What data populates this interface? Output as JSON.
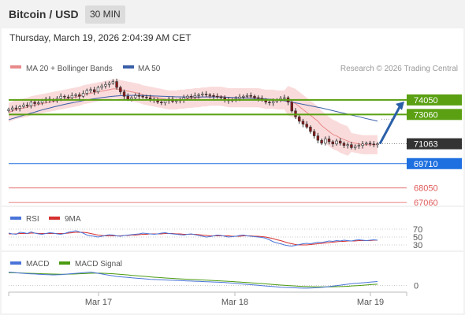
{
  "header": {
    "title": "Bitcoin / USD",
    "timeframe": "30 MIN",
    "timestamp": "Thursday, March 19, 2026 2:04:39 AM CET"
  },
  "legend": {
    "ma20_label": "MA 20 + Bollinger Bands",
    "ma50_label": "MA 50",
    "credit": "Research © 2026 Trading Central"
  },
  "colors": {
    "ma20": "#e88a8a",
    "ma50": "#3a5fa8",
    "green_level": "#5aa012",
    "blue_level": "#1e6fe0",
    "red_level": "#e05a5a",
    "current": "#333333",
    "bull_candle": "#ffffff",
    "bear_candle": "#8b1a1a",
    "bands": "#f9d2d2",
    "rsi": "#4a74d8",
    "rsi_ma": "#d63030",
    "macd": "#4a74d8",
    "macd_signal": "#4a9a10",
    "arrow": "#2a5fa8"
  },
  "chart_data": [
    {
      "type": "candlestick",
      "name": "price",
      "y_range": [
        66800,
        75600
      ],
      "x_ticks": [
        "Mar 17",
        "Mar 18",
        "Mar 19"
      ],
      "levels": [
        {
          "value": 74050,
          "label": "74050",
          "kind": "resistance"
        },
        {
          "value": 73060,
          "label": "73060",
          "kind": "resistance"
        },
        {
          "value": 71063,
          "label": "71063",
          "kind": "current"
        },
        {
          "value": 69710,
          "label": "69710",
          "kind": "support"
        },
        {
          "value": 68050,
          "label": "68050",
          "kind": "support-weak"
        },
        {
          "value": 67060,
          "label": "67060",
          "kind": "support-weak"
        }
      ],
      "close": [
        73400,
        73500,
        73480,
        73600,
        73700,
        73650,
        73900,
        73800,
        73850,
        74000,
        74100,
        74050,
        74000,
        74150,
        74300,
        74250,
        74200,
        74350,
        74400,
        74300,
        74500,
        74700,
        74750,
        74600,
        74900,
        75000,
        75100,
        75200,
        75300,
        74900,
        74600,
        74300,
        74100,
        74200,
        74350,
        74300,
        74250,
        74200,
        74100,
        74050,
        73900,
        73850,
        74000,
        74100,
        73950,
        74000,
        74050,
        74200,
        74300,
        74250,
        74350,
        74400,
        74450,
        74400,
        74350,
        74300,
        74250,
        74200,
        74050,
        74000,
        74050,
        74150,
        74250,
        74300,
        74350,
        74300,
        74200,
        74150,
        74050,
        73900,
        73850,
        73950,
        74050,
        74150,
        74200,
        73900,
        73300,
        72900,
        72600,
        72400,
        72200,
        71900,
        71600,
        71300,
        71100,
        71400,
        71200,
        71050,
        71250,
        71100,
        70950,
        71000,
        70800,
        70900,
        70950,
        71050,
        71100,
        71050,
        71000,
        71063
      ],
      "ma20": [
        73200,
        73300,
        73400,
        73450,
        73500,
        73550,
        73650,
        73700,
        73750,
        73800,
        73850,
        73900,
        73950,
        74000,
        74050,
        74100,
        74150,
        74200,
        74250,
        74300,
        74400,
        74450,
        74500,
        74550,
        74600,
        74650,
        74700,
        74750,
        74800,
        74800,
        74750,
        74700,
        74650,
        74600,
        74550,
        74500,
        74400,
        74350,
        74300,
        74250,
        74200,
        74150,
        74100,
        74050,
        74050,
        74050,
        74100,
        74100,
        74150,
        74150,
        74200,
        74200,
        74250,
        74250,
        74300,
        74300,
        74300,
        74300,
        74250,
        74200,
        74200,
        74200,
        74200,
        74200,
        74200,
        74200,
        74200,
        74200,
        74150,
        74100,
        74100,
        74100,
        74050,
        74050,
        74050,
        74000,
        73900,
        73800,
        73600,
        73400,
        73200,
        73000,
        72800,
        72600,
        72300,
        72100,
        71900,
        71700,
        71600,
        71450,
        71350,
        71250,
        71150,
        71100,
        71050,
        71000,
        71000,
        71000,
        71000,
        71000
      ],
      "ma50": [
        72700,
        72780,
        72850,
        72930,
        73000,
        73080,
        73150,
        73220,
        73300,
        73370,
        73440,
        73500,
        73570,
        73630,
        73690,
        73750,
        73800,
        73850,
        73900,
        73950,
        74000,
        74050,
        74090,
        74130,
        74170,
        74210,
        74240,
        74270,
        74300,
        74320,
        74340,
        74350,
        74360,
        74360,
        74360,
        74360,
        74350,
        74340,
        74330,
        74320,
        74310,
        74300,
        74290,
        74280,
        74270,
        74260,
        74260,
        74250,
        74250,
        74250,
        74250,
        74250,
        74250,
        74250,
        74250,
        74250,
        74250,
        74250,
        74240,
        74230,
        74220,
        74210,
        74200,
        74190,
        74180,
        74170,
        74160,
        74150,
        74140,
        74120,
        74100,
        74080,
        74050,
        74020,
        73990,
        73950,
        73900,
        73850,
        73800,
        73750,
        73700,
        73650,
        73600,
        73550,
        73500,
        73440,
        73380,
        73320,
        73260,
        73200,
        73140,
        73080,
        73020,
        72960,
        72900,
        72840,
        72780,
        72720,
        72660,
        72600
      ]
    },
    {
      "type": "line",
      "name": "RSI",
      "series": [
        {
          "name": "RSI",
          "values": [
            60,
            58,
            57,
            62,
            61,
            59,
            63,
            60,
            58,
            57,
            59,
            61,
            60,
            58,
            57,
            59,
            62,
            64,
            66,
            63,
            60,
            55,
            53,
            52,
            50,
            52,
            54,
            56,
            55,
            53,
            52,
            54,
            55,
            56,
            57,
            58,
            60,
            59,
            58,
            57,
            58,
            60,
            61,
            59,
            58,
            57,
            56,
            55,
            57,
            58,
            56,
            54,
            52,
            50,
            51,
            53,
            55,
            54,
            52,
            50,
            51,
            52,
            54,
            55,
            53,
            52,
            51,
            50,
            49,
            47,
            43,
            38,
            35,
            33,
            30,
            28,
            27,
            29,
            31,
            33,
            34,
            33,
            35,
            37,
            36,
            38,
            40,
            39,
            41,
            40,
            42,
            41,
            40,
            42,
            43,
            42,
            41,
            42,
            43,
            42
          ]
        },
        {
          "name": "9MA",
          "values": [
            58,
            58,
            58,
            59,
            59,
            59,
            60,
            60,
            59,
            59,
            59,
            59,
            59,
            59,
            59,
            59,
            60,
            61,
            62,
            62,
            62,
            61,
            59,
            57,
            55,
            54,
            53,
            53,
            53,
            53,
            53,
            54,
            54,
            55,
            55,
            56,
            57,
            57,
            58,
            58,
            58,
            58,
            59,
            59,
            59,
            58,
            58,
            57,
            57,
            57,
            57,
            56,
            55,
            54,
            53,
            53,
            53,
            53,
            53,
            53,
            52,
            52,
            52,
            53,
            53,
            53,
            52,
            52,
            51,
            50,
            48,
            46,
            43,
            41,
            38,
            35,
            33,
            31,
            30,
            30,
            30,
            31,
            32,
            33,
            34,
            35,
            36,
            37,
            38,
            39,
            39,
            40,
            40,
            40,
            41,
            41,
            41,
            41,
            42,
            42
          ]
        }
      ],
      "ticks": [
        "70",
        "50",
        "30"
      ]
    },
    {
      "type": "line",
      "name": "MACD",
      "series": [
        {
          "name": "MACD",
          "values": [
            250,
            240,
            230,
            220,
            210,
            200,
            195,
            190,
            180,
            175,
            170,
            165,
            160,
            165,
            170,
            180,
            190,
            200,
            210,
            220,
            230,
            240,
            250,
            230,
            210,
            190,
            170,
            150,
            130,
            110,
            100,
            90,
            80,
            70,
            60,
            50,
            40,
            30,
            20,
            15,
            10,
            5,
            0,
            -5,
            -10,
            -15,
            -20,
            -25,
            -30,
            -35,
            -40,
            -45,
            -50,
            -55,
            -60,
            -65,
            -70,
            -75,
            -80,
            -90,
            -100,
            -110,
            -120,
            -130,
            -140,
            -150,
            -160,
            -170,
            -180,
            -190,
            -200,
            -210,
            -220,
            -230,
            -235,
            -240,
            -245,
            -250,
            -255,
            -260,
            -260,
            -255,
            -250,
            -245,
            -235,
            -225,
            -210,
            -195,
            -180,
            -165,
            -150,
            -135,
            -120,
            -110,
            -100,
            -90,
            -80,
            -70,
            -60,
            -50
          ]
        },
        {
          "name": "MACD Signal",
          "values": [
            230,
            228,
            225,
            222,
            218,
            214,
            210,
            206,
            202,
            198,
            194,
            190,
            186,
            183,
            182,
            182,
            184,
            187,
            191,
            196,
            201,
            207,
            213,
            216,
            216,
            214,
            210,
            204,
            196,
            187,
            178,
            168,
            158,
            148,
            138,
            128,
            118,
            108,
            98,
            89,
            80,
            72,
            64,
            56,
            49,
            42,
            35,
            29,
            23,
            17,
            11,
            5,
            -1,
            -7,
            -13,
            -19,
            -25,
            -31,
            -37,
            -44,
            -51,
            -58,
            -66,
            -74,
            -82,
            -90,
            -99,
            -108,
            -117,
            -126,
            -135,
            -144,
            -153,
            -162,
            -170,
            -178,
            -185,
            -192,
            -199,
            -205,
            -210,
            -214,
            -217,
            -219,
            -220,
            -220,
            -219,
            -217,
            -214,
            -210,
            -205,
            -199,
            -192,
            -185,
            -177,
            -169,
            -160,
            -151,
            -142,
            -133
          ]
        }
      ],
      "ticks": [
        "0"
      ]
    }
  ],
  "rsi_legend": {
    "rsi_label": "RSI",
    "ma_label": "9MA"
  },
  "macd_legend": {
    "macd_label": "MACD",
    "signal_label": "MACD Signal"
  }
}
